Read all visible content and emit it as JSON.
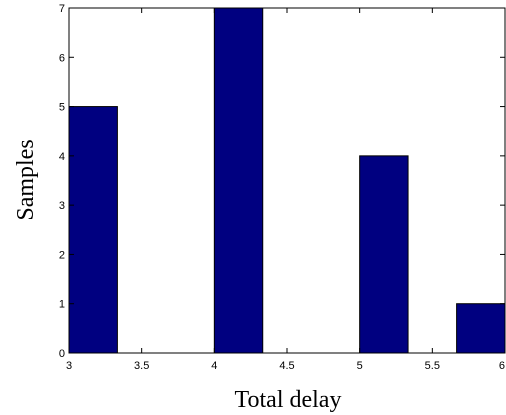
{
  "chart_data": {
    "type": "bar",
    "title": "",
    "xlabel": "Total delay",
    "ylabel": "Samples",
    "xlim": [
      3,
      6
    ],
    "ylim": [
      0,
      7
    ],
    "bar_width": 0.333,
    "bars": [
      {
        "x": 3.1665,
        "value": 5
      },
      {
        "x": 3.5,
        "value": 0
      },
      {
        "x": 3.8335,
        "value": 0
      },
      {
        "x": 4.1665,
        "value": 7
      },
      {
        "x": 4.5,
        "value": 0
      },
      {
        "x": 4.8335,
        "value": 0
      },
      {
        "x": 5.1665,
        "value": 4
      },
      {
        "x": 5.5,
        "value": 0
      },
      {
        "x": 5.8335,
        "value": 1
      }
    ],
    "x_ticks": [
      {
        "value": 3,
        "label": "3"
      },
      {
        "value": 3.5,
        "label": "3.5"
      },
      {
        "value": 4,
        "label": "4"
      },
      {
        "value": 4.5,
        "label": "4.5"
      },
      {
        "value": 5,
        "label": "5"
      },
      {
        "value": 5.5,
        "label": "5.5"
      },
      {
        "value": 6,
        "label": "6"
      }
    ],
    "y_ticks": [
      {
        "value": 0,
        "label": "0"
      },
      {
        "value": 1,
        "label": "1"
      },
      {
        "value": 2,
        "label": "2"
      },
      {
        "value": 3,
        "label": "3"
      },
      {
        "value": 4,
        "label": "4"
      },
      {
        "value": 5,
        "label": "5"
      },
      {
        "value": 6,
        "label": "6"
      },
      {
        "value": 7,
        "label": "7"
      }
    ],
    "grid": false,
    "legend": "none",
    "colors": {
      "bar_fill": "#000080",
      "bar_edge": "#000000"
    }
  }
}
